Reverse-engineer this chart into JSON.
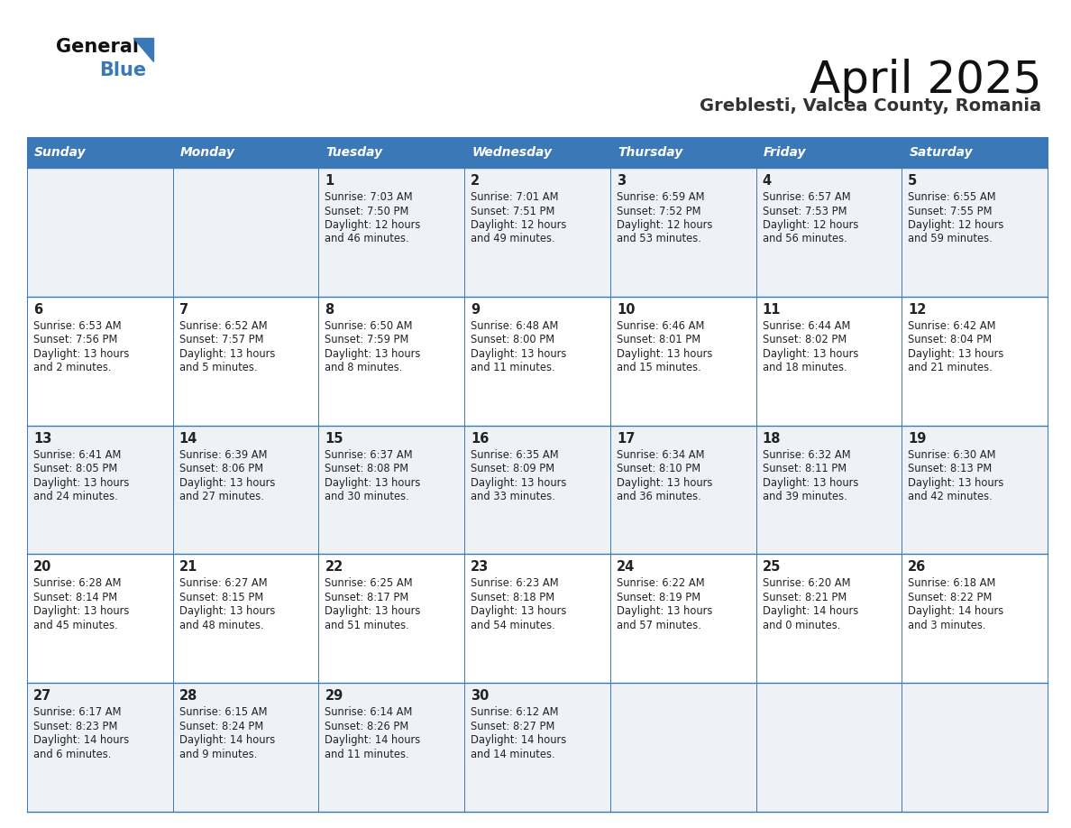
{
  "title": "April 2025",
  "subtitle": "Greblesti, Valcea County, Romania",
  "days_of_week": [
    "Sunday",
    "Monday",
    "Tuesday",
    "Wednesday",
    "Thursday",
    "Friday",
    "Saturday"
  ],
  "header_bg": "#3b78b8",
  "header_text": "#ffffff",
  "row_bg_odd": "#eef2f7",
  "row_bg_even": "#ffffff",
  "border_color": "#3b78b8",
  "text_color": "#222222",
  "cal_data": [
    [
      {
        "day": "",
        "lines": []
      },
      {
        "day": "",
        "lines": []
      },
      {
        "day": "1",
        "lines": [
          "Sunrise: 7:03 AM",
          "Sunset: 7:50 PM",
          "Daylight: 12 hours",
          "and 46 minutes."
        ]
      },
      {
        "day": "2",
        "lines": [
          "Sunrise: 7:01 AM",
          "Sunset: 7:51 PM",
          "Daylight: 12 hours",
          "and 49 minutes."
        ]
      },
      {
        "day": "3",
        "lines": [
          "Sunrise: 6:59 AM",
          "Sunset: 7:52 PM",
          "Daylight: 12 hours",
          "and 53 minutes."
        ]
      },
      {
        "day": "4",
        "lines": [
          "Sunrise: 6:57 AM",
          "Sunset: 7:53 PM",
          "Daylight: 12 hours",
          "and 56 minutes."
        ]
      },
      {
        "day": "5",
        "lines": [
          "Sunrise: 6:55 AM",
          "Sunset: 7:55 PM",
          "Daylight: 12 hours",
          "and 59 minutes."
        ]
      }
    ],
    [
      {
        "day": "6",
        "lines": [
          "Sunrise: 6:53 AM",
          "Sunset: 7:56 PM",
          "Daylight: 13 hours",
          "and 2 minutes."
        ]
      },
      {
        "day": "7",
        "lines": [
          "Sunrise: 6:52 AM",
          "Sunset: 7:57 PM",
          "Daylight: 13 hours",
          "and 5 minutes."
        ]
      },
      {
        "day": "8",
        "lines": [
          "Sunrise: 6:50 AM",
          "Sunset: 7:59 PM",
          "Daylight: 13 hours",
          "and 8 minutes."
        ]
      },
      {
        "day": "9",
        "lines": [
          "Sunrise: 6:48 AM",
          "Sunset: 8:00 PM",
          "Daylight: 13 hours",
          "and 11 minutes."
        ]
      },
      {
        "day": "10",
        "lines": [
          "Sunrise: 6:46 AM",
          "Sunset: 8:01 PM",
          "Daylight: 13 hours",
          "and 15 minutes."
        ]
      },
      {
        "day": "11",
        "lines": [
          "Sunrise: 6:44 AM",
          "Sunset: 8:02 PM",
          "Daylight: 13 hours",
          "and 18 minutes."
        ]
      },
      {
        "day": "12",
        "lines": [
          "Sunrise: 6:42 AM",
          "Sunset: 8:04 PM",
          "Daylight: 13 hours",
          "and 21 minutes."
        ]
      }
    ],
    [
      {
        "day": "13",
        "lines": [
          "Sunrise: 6:41 AM",
          "Sunset: 8:05 PM",
          "Daylight: 13 hours",
          "and 24 minutes."
        ]
      },
      {
        "day": "14",
        "lines": [
          "Sunrise: 6:39 AM",
          "Sunset: 8:06 PM",
          "Daylight: 13 hours",
          "and 27 minutes."
        ]
      },
      {
        "day": "15",
        "lines": [
          "Sunrise: 6:37 AM",
          "Sunset: 8:08 PM",
          "Daylight: 13 hours",
          "and 30 minutes."
        ]
      },
      {
        "day": "16",
        "lines": [
          "Sunrise: 6:35 AM",
          "Sunset: 8:09 PM",
          "Daylight: 13 hours",
          "and 33 minutes."
        ]
      },
      {
        "day": "17",
        "lines": [
          "Sunrise: 6:34 AM",
          "Sunset: 8:10 PM",
          "Daylight: 13 hours",
          "and 36 minutes."
        ]
      },
      {
        "day": "18",
        "lines": [
          "Sunrise: 6:32 AM",
          "Sunset: 8:11 PM",
          "Daylight: 13 hours",
          "and 39 minutes."
        ]
      },
      {
        "day": "19",
        "lines": [
          "Sunrise: 6:30 AM",
          "Sunset: 8:13 PM",
          "Daylight: 13 hours",
          "and 42 minutes."
        ]
      }
    ],
    [
      {
        "day": "20",
        "lines": [
          "Sunrise: 6:28 AM",
          "Sunset: 8:14 PM",
          "Daylight: 13 hours",
          "and 45 minutes."
        ]
      },
      {
        "day": "21",
        "lines": [
          "Sunrise: 6:27 AM",
          "Sunset: 8:15 PM",
          "Daylight: 13 hours",
          "and 48 minutes."
        ]
      },
      {
        "day": "22",
        "lines": [
          "Sunrise: 6:25 AM",
          "Sunset: 8:17 PM",
          "Daylight: 13 hours",
          "and 51 minutes."
        ]
      },
      {
        "day": "23",
        "lines": [
          "Sunrise: 6:23 AM",
          "Sunset: 8:18 PM",
          "Daylight: 13 hours",
          "and 54 minutes."
        ]
      },
      {
        "day": "24",
        "lines": [
          "Sunrise: 6:22 AM",
          "Sunset: 8:19 PM",
          "Daylight: 13 hours",
          "and 57 minutes."
        ]
      },
      {
        "day": "25",
        "lines": [
          "Sunrise: 6:20 AM",
          "Sunset: 8:21 PM",
          "Daylight: 14 hours",
          "and 0 minutes."
        ]
      },
      {
        "day": "26",
        "lines": [
          "Sunrise: 6:18 AM",
          "Sunset: 8:22 PM",
          "Daylight: 14 hours",
          "and 3 minutes."
        ]
      }
    ],
    [
      {
        "day": "27",
        "lines": [
          "Sunrise: 6:17 AM",
          "Sunset: 8:23 PM",
          "Daylight: 14 hours",
          "and 6 minutes."
        ]
      },
      {
        "day": "28",
        "lines": [
          "Sunrise: 6:15 AM",
          "Sunset: 8:24 PM",
          "Daylight: 14 hours",
          "and 9 minutes."
        ]
      },
      {
        "day": "29",
        "lines": [
          "Sunrise: 6:14 AM",
          "Sunset: 8:26 PM",
          "Daylight: 14 hours",
          "and 11 minutes."
        ]
      },
      {
        "day": "30",
        "lines": [
          "Sunrise: 6:12 AM",
          "Sunset: 8:27 PM",
          "Daylight: 14 hours",
          "and 14 minutes."
        ]
      },
      {
        "day": "",
        "lines": []
      },
      {
        "day": "",
        "lines": []
      },
      {
        "day": "",
        "lines": []
      }
    ]
  ]
}
